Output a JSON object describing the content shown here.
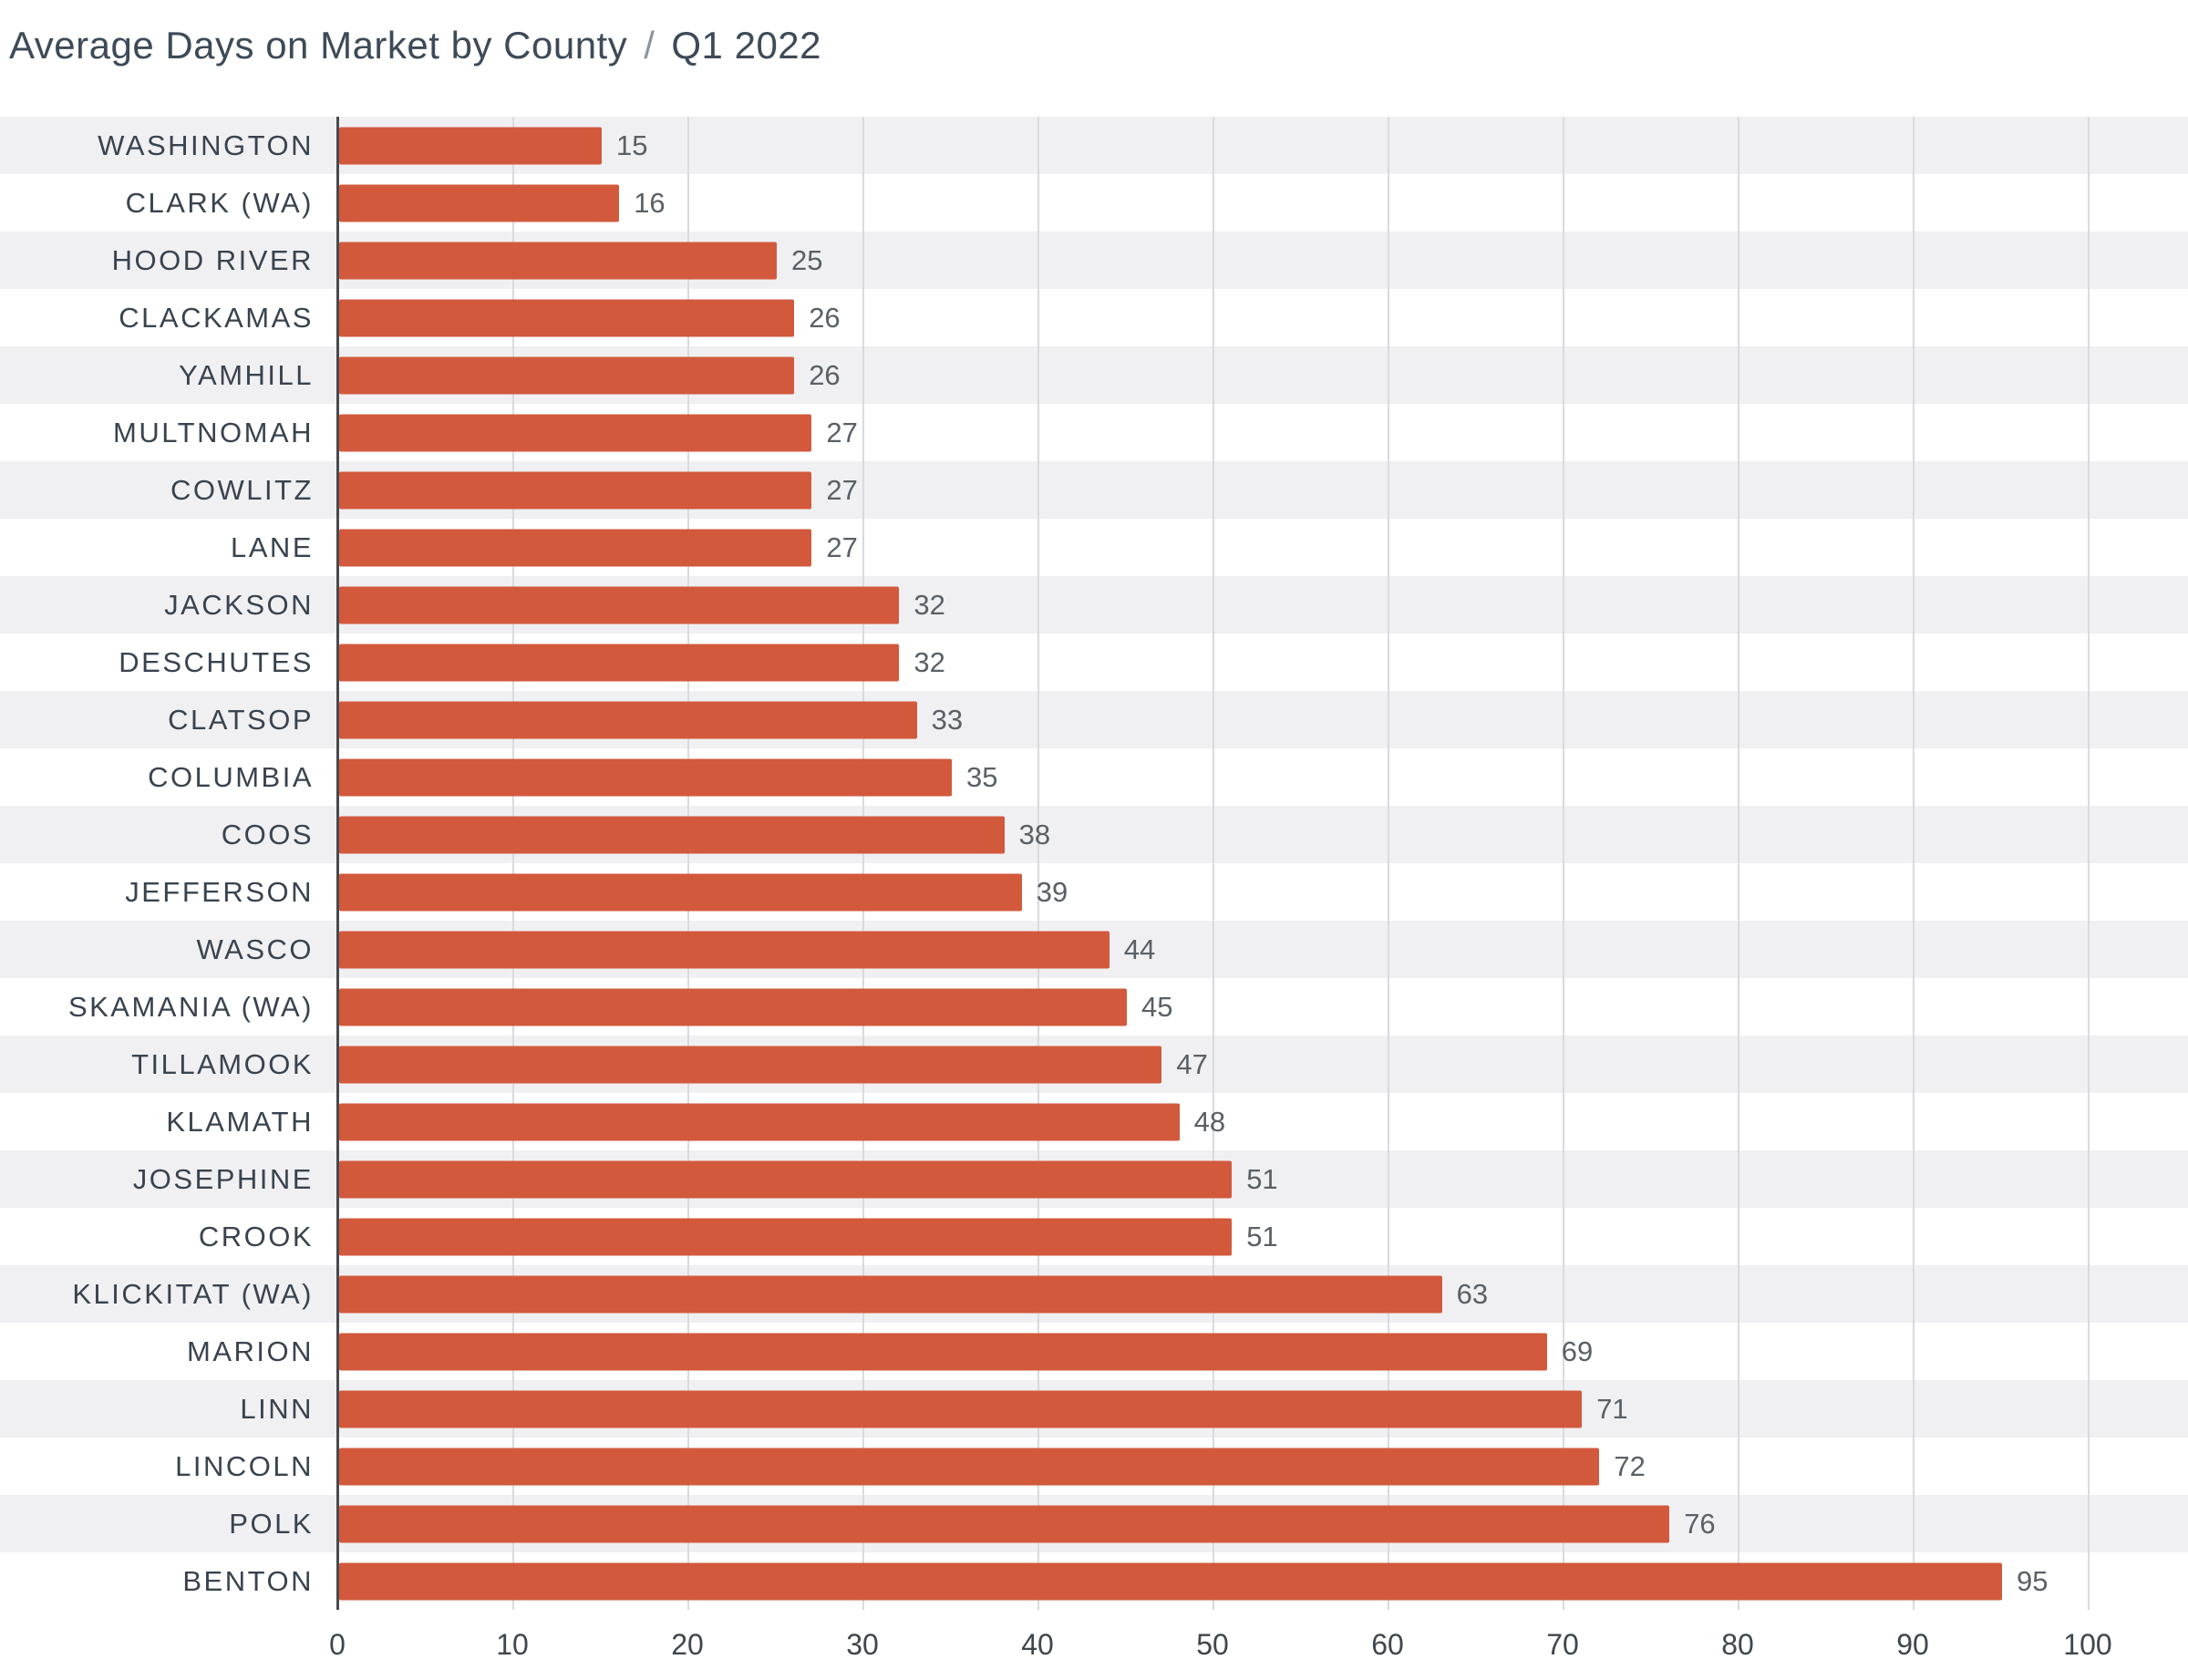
{
  "header": {
    "title": "Average Days on Market by County",
    "separator": "/",
    "subtitle": "Q1 2022"
  },
  "chart_data": {
    "type": "bar",
    "orientation": "horizontal",
    "title": "Average Days on Market by County",
    "subtitle": "Q1 2022",
    "xlabel": "",
    "ylabel": "",
    "xlim": [
      0,
      100
    ],
    "x_ticks": [
      0,
      10,
      20,
      30,
      40,
      50,
      60,
      70,
      80,
      90,
      100
    ],
    "grid": "vertical",
    "value_labels": true,
    "categories": [
      "WASHINGTON",
      "CLARK (WA)",
      "HOOD RIVER",
      "CLACKAMAS",
      "YAMHILL",
      "MULTNOMAH",
      "COWLITZ",
      "LANE",
      "JACKSON",
      "DESCHUTES",
      "CLATSOP",
      "COLUMBIA",
      "COOS",
      "JEFFERSON",
      "WASCO",
      "SKAMANIA (WA)",
      "TILLAMOOK",
      "KLAMATH",
      "JOSEPHINE",
      "CROOK",
      "KLICKITAT (WA)",
      "MARION",
      "LINN",
      "LINCOLN",
      "POLK",
      "BENTON"
    ],
    "values": [
      15,
      16,
      25,
      26,
      26,
      27,
      27,
      27,
      32,
      32,
      33,
      35,
      38,
      39,
      44,
      45,
      47,
      48,
      51,
      51,
      63,
      69,
      71,
      72,
      76,
      95
    ],
    "colors": {
      "bar": "#d2593c",
      "stripe": "#f0f0f3",
      "grid": "#d9dadf",
      "axis": "#474a4e",
      "label": "#39434e",
      "value": "#5a6066",
      "title": "#3d4a57"
    }
  }
}
